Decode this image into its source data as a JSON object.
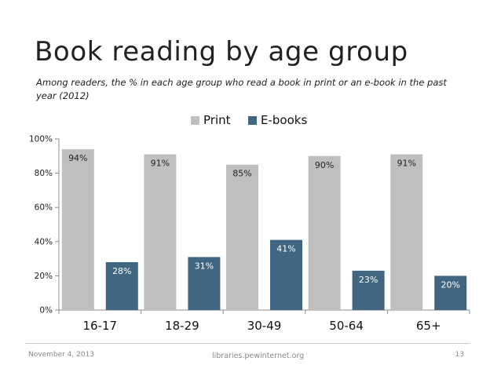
{
  "slide": {
    "title": "Book reading by age group",
    "subtitle": "Among readers, the % in each age group who read a book in print or an e-book in the past year (2012)",
    "footer_date": "November 4, 2013",
    "footer_source": "libraries.pewinternet.org",
    "page_number": "13"
  },
  "chart_data": {
    "type": "bar",
    "categories": [
      "16-17",
      "18-29",
      "30-49",
      "50-64",
      "65+"
    ],
    "series": [
      {
        "name": "Print",
        "color": "#bfbfbf",
        "values": [
          94,
          91,
          85,
          90,
          91
        ],
        "labels": [
          "94%",
          "91%",
          "85%",
          "90%",
          "91%"
        ]
      },
      {
        "name": "E-books",
        "color": "#416682",
        "values": [
          28,
          31,
          41,
          23,
          20
        ],
        "labels": [
          "28%",
          "31%",
          "41%",
          "23%",
          "20%"
        ]
      }
    ],
    "ylim": [
      0,
      100
    ],
    "yticks": [
      "0%",
      "20%",
      "40%",
      "60%",
      "80%",
      "100%"
    ],
    "legend_position": "top-center",
    "grid": false
  }
}
